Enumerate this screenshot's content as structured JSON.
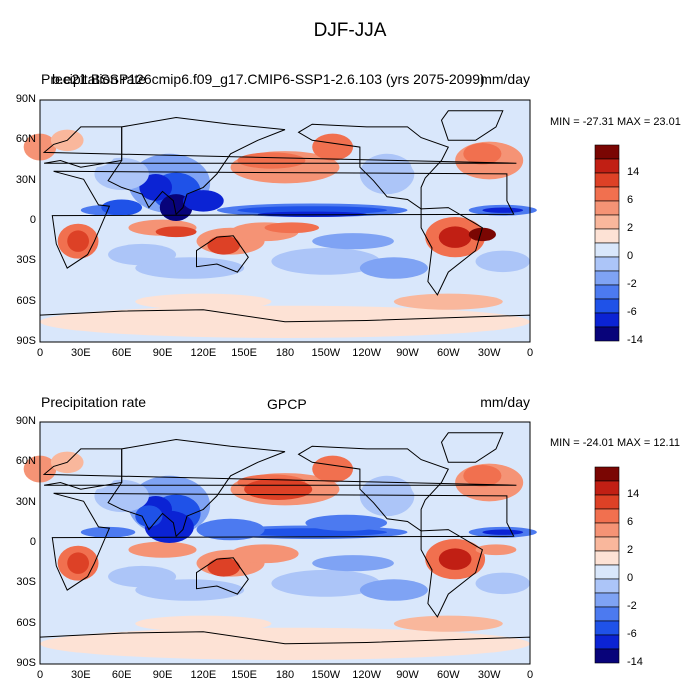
{
  "figure": {
    "title": "DJF-JJA"
  },
  "colors": {
    "levels": [
      "#08037a",
      "#0b23d4",
      "#1f52e8",
      "#4c7af0",
      "#7fa3f4",
      "#acc5f8",
      "#d9e7fb",
      "#fde2d5",
      "#f9b79c",
      "#f59375",
      "#f1704f",
      "#dd4126",
      "#c11f14",
      "#7a0603"
    ],
    "colorbar_labels": [
      "14",
      "6",
      "2",
      "0",
      "-2",
      "-6",
      "-14"
    ]
  },
  "lon_ticks": [
    "0",
    "30E",
    "60E",
    "90E",
    "120E",
    "150E",
    "180",
    "150W",
    "120W",
    "90W",
    "60W",
    "30W",
    "0"
  ],
  "lat_ticks": [
    "90N",
    "60N",
    "30N",
    "0",
    "30S",
    "60S",
    "90S"
  ],
  "panels": [
    {
      "left_label": "Precipitation rate",
      "center_label": "b.e21.BSSP126cmip6.f09_g17.CMIP6-SSP1-2.6.103 (yrs 2075-2099)",
      "units": "mm/day",
      "minmax": "MIN = -27.31 MAX =  23.01"
    },
    {
      "left_label": "Precipitation rate",
      "center_label": "GPCP",
      "units": "mm/day",
      "minmax": "MIN = -24.01 MAX =  12.11"
    }
  ]
}
